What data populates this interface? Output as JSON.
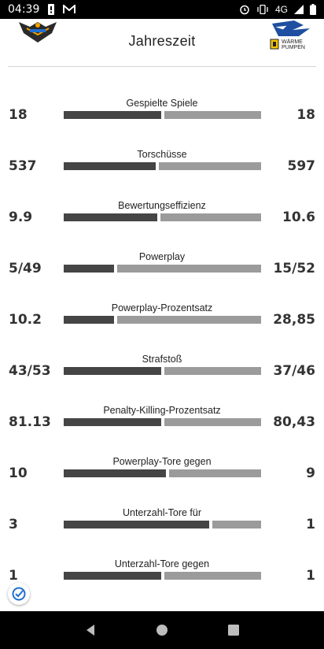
{
  "status_bar": {
    "time": "04:39",
    "network": "4G",
    "icons": [
      "alert-icon",
      "gmail-icon",
      "alarm-icon",
      "vibrate-icon",
      "signal-icon",
      "battery-icon"
    ]
  },
  "header": {
    "title": "Jahreszeit",
    "away_logo_text_1": "WÄRME",
    "away_logo_text_2": "PUMPEN"
  },
  "colors": {
    "home_bar": "#454545",
    "away_bar": "#9b9b9b"
  },
  "stats": [
    {
      "label": "Gespielte Spiele",
      "home": "18",
      "away": "18",
      "home_share": 0.5
    },
    {
      "label": "Torschüsse",
      "home": "537",
      "away": "597",
      "home_share": 0.474
    },
    {
      "label": "Bewertungseffizienz",
      "home": "9.9",
      "away": "10.6",
      "home_share": 0.483
    },
    {
      "label": "Powerplay",
      "home": "5/49",
      "away": "15/52",
      "home_share": 0.26
    },
    {
      "label": "Powerplay-Prozentsatz",
      "home": "10.2",
      "away": "28,85",
      "home_share": 0.26
    },
    {
      "label": "Strafstoß",
      "home": "43/53",
      "away": "37/46",
      "home_share": 0.5
    },
    {
      "label": "Penalty-Killing-Prozentsatz",
      "home": "81.13",
      "away": "80,43",
      "home_share": 0.5
    },
    {
      "label": "Powerplay-Tore gegen",
      "home": "10",
      "away": "9",
      "home_share": 0.526
    },
    {
      "label": "Unterzahl-Tore für",
      "home": "3",
      "away": "1",
      "home_share": 0.75
    },
    {
      "label": "Unterzahl-Tore gegen",
      "home": "1",
      "away": "1",
      "home_share": 0.5
    }
  ],
  "nav": {
    "icons": [
      "back-icon",
      "home-icon",
      "recents-icon"
    ]
  }
}
